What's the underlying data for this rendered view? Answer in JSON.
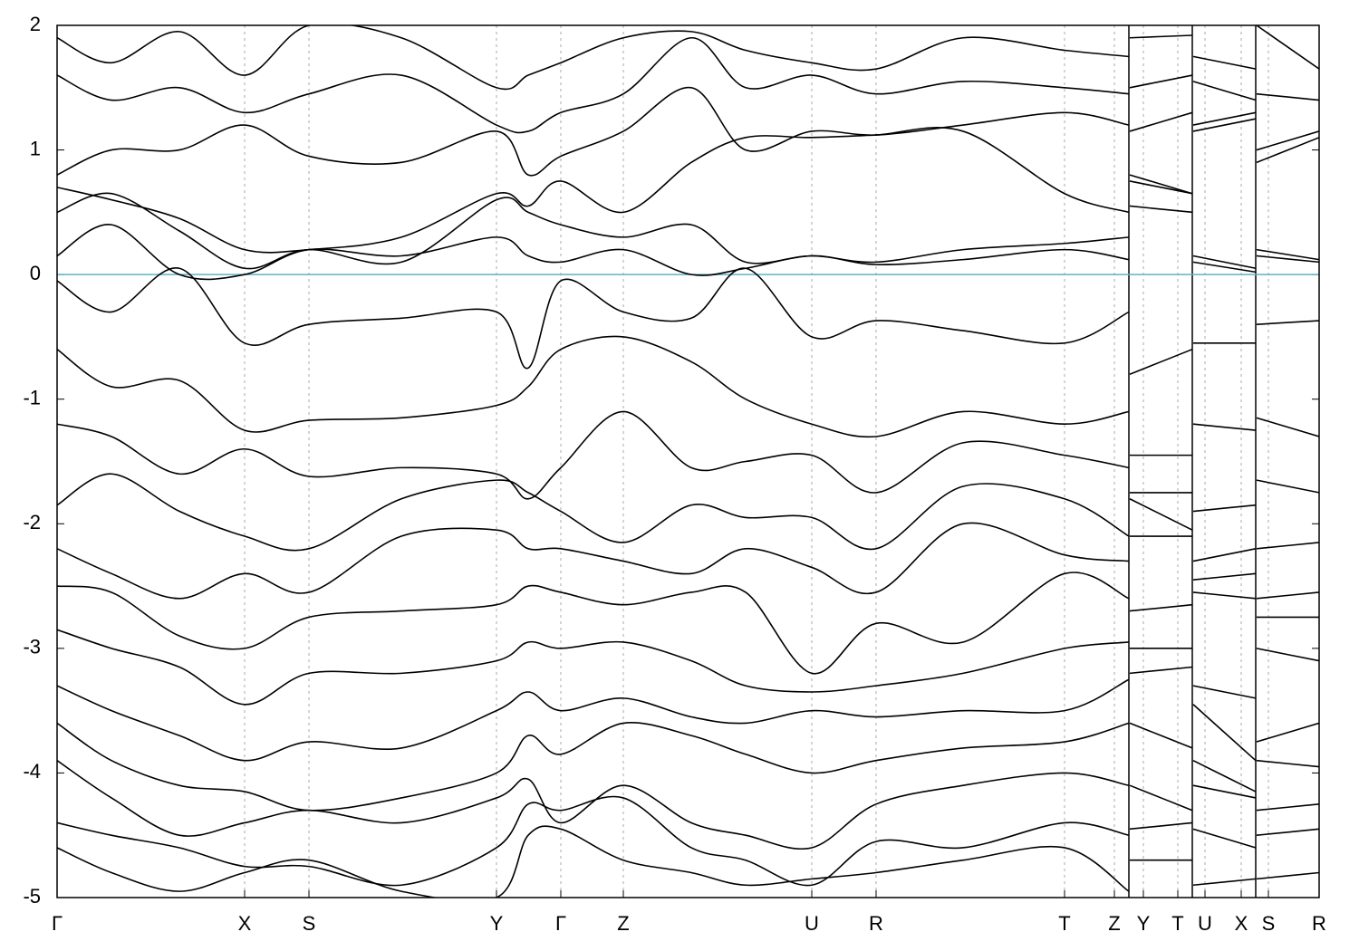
{
  "chart_data": {
    "type": "line",
    "color": "#000000",
    "hline": 0,
    "hline_color": "#5ab4c8",
    "ylim": [
      -5,
      2
    ],
    "yticks": [
      -5,
      -4,
      -3,
      -2,
      -1,
      0,
      1,
      2
    ],
    "xlim": [
      0,
      1.393
    ],
    "xticks": [
      {
        "value": 0,
        "label": "Γ"
      },
      {
        "value": 0.207,
        "label": "X"
      },
      {
        "value": 0.278,
        "label": "S"
      },
      {
        "value": 0.485,
        "label": "Y"
      },
      {
        "value": 0.556,
        "label": "Γ"
      },
      {
        "value": 0.625,
        "label": "Z"
      },
      {
        "value": 0.833,
        "label": "U"
      },
      {
        "value": 0.904,
        "label": "R"
      },
      {
        "value": 1.112,
        "label": "T"
      },
      {
        "value": 1.167,
        "label": "Z"
      },
      {
        "value": 1.199,
        "label": "Y"
      },
      {
        "value": 1.237,
        "label": "T"
      },
      {
        "value": 1.267,
        "label": "U"
      },
      {
        "value": 1.307,
        "label": "X"
      },
      {
        "value": 1.337,
        "label": "S"
      },
      {
        "value": 1.393,
        "label": "R"
      }
    ],
    "grid": true,
    "breaks": [
      1.183,
      1.253,
      1.323
    ],
    "x": [
      0,
      0.06,
      0.135,
      0.207,
      0.278,
      0.38,
      0.485,
      0.52,
      0.556,
      0.625,
      0.7,
      0.76,
      0.833,
      0.904,
      1.0,
      1.112,
      1.183,
      1.1835,
      1.184,
      1.253,
      1.2535,
      1.254,
      1.323,
      1.3235,
      1.324,
      1.393
    ],
    "series": [
      {
        "values": [
          1.9,
          1.7,
          1.95,
          1.6,
          2.0,
          1.9,
          1.5,
          1.6,
          1.7,
          1.9,
          1.95,
          1.8,
          1.7,
          1.65,
          1.9,
          1.8,
          1.75,
          null,
          1.9,
          1.92,
          null,
          1.75,
          1.65,
          null,
          2.0,
          1.65
        ]
      },
      {
        "values": [
          1.6,
          1.4,
          1.5,
          1.3,
          1.45,
          1.6,
          1.2,
          1.15,
          1.3,
          1.45,
          1.9,
          1.5,
          1.6,
          1.45,
          1.55,
          1.5,
          1.45,
          null,
          1.5,
          1.6,
          null,
          1.55,
          1.4,
          null,
          1.45,
          1.4
        ]
      },
      {
        "values": [
          0.8,
          1.0,
          1.0,
          1.2,
          0.95,
          0.9,
          1.15,
          0.8,
          0.95,
          1.15,
          1.5,
          1.0,
          1.15,
          1.12,
          1.2,
          1.3,
          1.2,
          null,
          1.15,
          1.3,
          null,
          1.15,
          1.25,
          null,
          0.9,
          1.1
        ]
      },
      {
        "values": [
          0.7,
          0.6,
          0.45,
          0.2,
          0.2,
          0.3,
          0.65,
          0.55,
          0.75,
          0.5,
          0.9,
          1.1,
          1.1,
          1.12,
          1.15,
          0.65,
          0.5,
          null,
          0.8,
          0.65,
          null,
          1.2,
          1.3,
          null,
          1.0,
          1.15
        ]
      },
      {
        "values": [
          0.5,
          0.65,
          0.35,
          0.05,
          0.2,
          0.1,
          0.6,
          0.5,
          0.4,
          0.3,
          0.4,
          0.1,
          0.15,
          0.1,
          0.2,
          0.25,
          0.3,
          null,
          0.75,
          0.65,
          null,
          0.15,
          0.05,
          null,
          0.2,
          0.12
        ]
      },
      {
        "values": [
          0.15,
          0.4,
          0.0,
          0.0,
          0.2,
          0.15,
          0.3,
          0.15,
          0.1,
          0.2,
          0.0,
          0.05,
          0.15,
          0.08,
          0.12,
          0.2,
          0.12,
          null,
          0.55,
          0.5,
          null,
          0.1,
          0.02,
          null,
          0.15,
          0.1
        ]
      },
      {
        "values": [
          -0.05,
          -0.3,
          0.05,
          -0.55,
          -0.4,
          -0.35,
          -0.3,
          -0.75,
          -0.05,
          -0.3,
          -0.35,
          0.05,
          -0.5,
          -0.37,
          -0.45,
          -0.55,
          -0.3,
          null,
          -0.8,
          -0.6,
          null,
          -0.55,
          -0.55,
          null,
          -0.4,
          -0.37
        ]
      },
      {
        "values": [
          -0.6,
          -0.9,
          -0.85,
          -1.25,
          -1.17,
          -1.15,
          -1.05,
          -0.9,
          -0.6,
          -0.5,
          -0.7,
          -1.0,
          -1.2,
          -1.3,
          -1.1,
          -1.2,
          -1.1,
          null,
          -1.45,
          -1.45,
          null,
          -1.2,
          -1.25,
          null,
          -1.15,
          -1.3
        ]
      },
      {
        "values": [
          -1.2,
          -1.3,
          -1.6,
          -1.4,
          -1.62,
          -1.55,
          -1.6,
          -1.8,
          -1.55,
          -1.1,
          -1.55,
          -1.5,
          -1.45,
          -1.75,
          -1.35,
          -1.45,
          -1.55,
          null,
          -1.75,
          -1.75,
          null,
          -1.9,
          -1.85,
          null,
          -1.65,
          -1.75
        ]
      },
      {
        "values": [
          -1.85,
          -1.6,
          -1.9,
          -2.1,
          -2.2,
          -1.8,
          -1.65,
          -1.75,
          -1.9,
          -2.15,
          -1.85,
          -1.95,
          -1.95,
          -2.2,
          -1.7,
          -1.8,
          -2.1,
          null,
          -1.8,
          -2.05,
          null,
          -2.3,
          -2.2,
          null,
          -2.2,
          -2.15
        ]
      },
      {
        "values": [
          -2.2,
          -2.4,
          -2.6,
          -2.4,
          -2.55,
          -2.1,
          -2.05,
          -2.2,
          -2.2,
          -2.3,
          -2.4,
          -2.2,
          -2.35,
          -2.55,
          -2.0,
          -2.25,
          -2.3,
          null,
          -2.1,
          -2.1,
          null,
          -2.45,
          -2.4,
          null,
          -2.6,
          -2.55
        ]
      },
      {
        "values": [
          -2.5,
          -2.55,
          -2.9,
          -3.0,
          -2.75,
          -2.7,
          -2.65,
          -2.5,
          -2.55,
          -2.65,
          -2.55,
          -2.55,
          -3.2,
          -2.8,
          -2.95,
          -2.4,
          -2.6,
          null,
          -2.7,
          -2.65,
          null,
          -2.55,
          -2.6,
          null,
          -2.75,
          -2.75
        ]
      },
      {
        "values": [
          -2.85,
          -3.0,
          -3.15,
          -3.45,
          -3.2,
          -3.2,
          -3.1,
          -2.95,
          -3.0,
          -2.95,
          -3.1,
          -3.3,
          -3.35,
          -3.3,
          -3.2,
          -3.0,
          -2.95,
          null,
          -3.0,
          -3.0,
          null,
          -3.3,
          -3.4,
          null,
          -3.0,
          -3.1
        ]
      },
      {
        "values": [
          -3.3,
          -3.5,
          -3.7,
          -3.9,
          -3.75,
          -3.8,
          -3.5,
          -3.35,
          -3.5,
          -3.4,
          -3.55,
          -3.6,
          -3.5,
          -3.55,
          -3.5,
          -3.5,
          -3.25,
          null,
          -3.2,
          -3.15,
          null,
          -3.45,
          -3.9,
          null,
          -3.75,
          -3.6
        ]
      },
      {
        "values": [
          -3.6,
          -3.9,
          -4.1,
          -4.15,
          -4.3,
          -4.2,
          -4.0,
          -3.7,
          -3.85,
          -3.6,
          -3.7,
          -3.85,
          -4.0,
          -3.9,
          -3.8,
          -3.75,
          -3.6,
          null,
          -3.6,
          -3.8,
          null,
          -3.9,
          -4.15,
          null,
          -3.9,
          -3.95
        ]
      },
      {
        "values": [
          -3.9,
          -4.2,
          -4.5,
          -4.4,
          -4.3,
          -4.4,
          -4.2,
          -4.05,
          -4.4,
          -4.1,
          -4.4,
          -4.5,
          -4.6,
          -4.25,
          -4.1,
          -4.0,
          -4.1,
          null,
          -4.1,
          -4.3,
          null,
          -4.1,
          -4.2,
          null,
          -4.3,
          -4.25
        ]
      },
      {
        "values": [
          -4.4,
          -4.5,
          -4.6,
          -4.75,
          -4.75,
          -4.9,
          -4.6,
          -4.25,
          -4.3,
          -4.2,
          -4.6,
          -4.7,
          -4.9,
          -4.55,
          -4.6,
          -4.4,
          -4.5,
          null,
          -4.45,
          -4.4,
          null,
          -4.45,
          -4.6,
          null,
          -4.5,
          -4.45
        ]
      },
      {
        "values": [
          -4.6,
          -4.8,
          -4.95,
          -4.8,
          -4.7,
          -4.95,
          -5.0,
          -4.5,
          -4.45,
          -4.7,
          -4.8,
          -4.9,
          -4.85,
          -4.8,
          -4.7,
          -4.6,
          -4.95,
          null,
          -4.7,
          -4.7,
          null,
          -4.9,
          -4.85,
          null,
          -4.85,
          -4.8
        ]
      }
    ]
  }
}
